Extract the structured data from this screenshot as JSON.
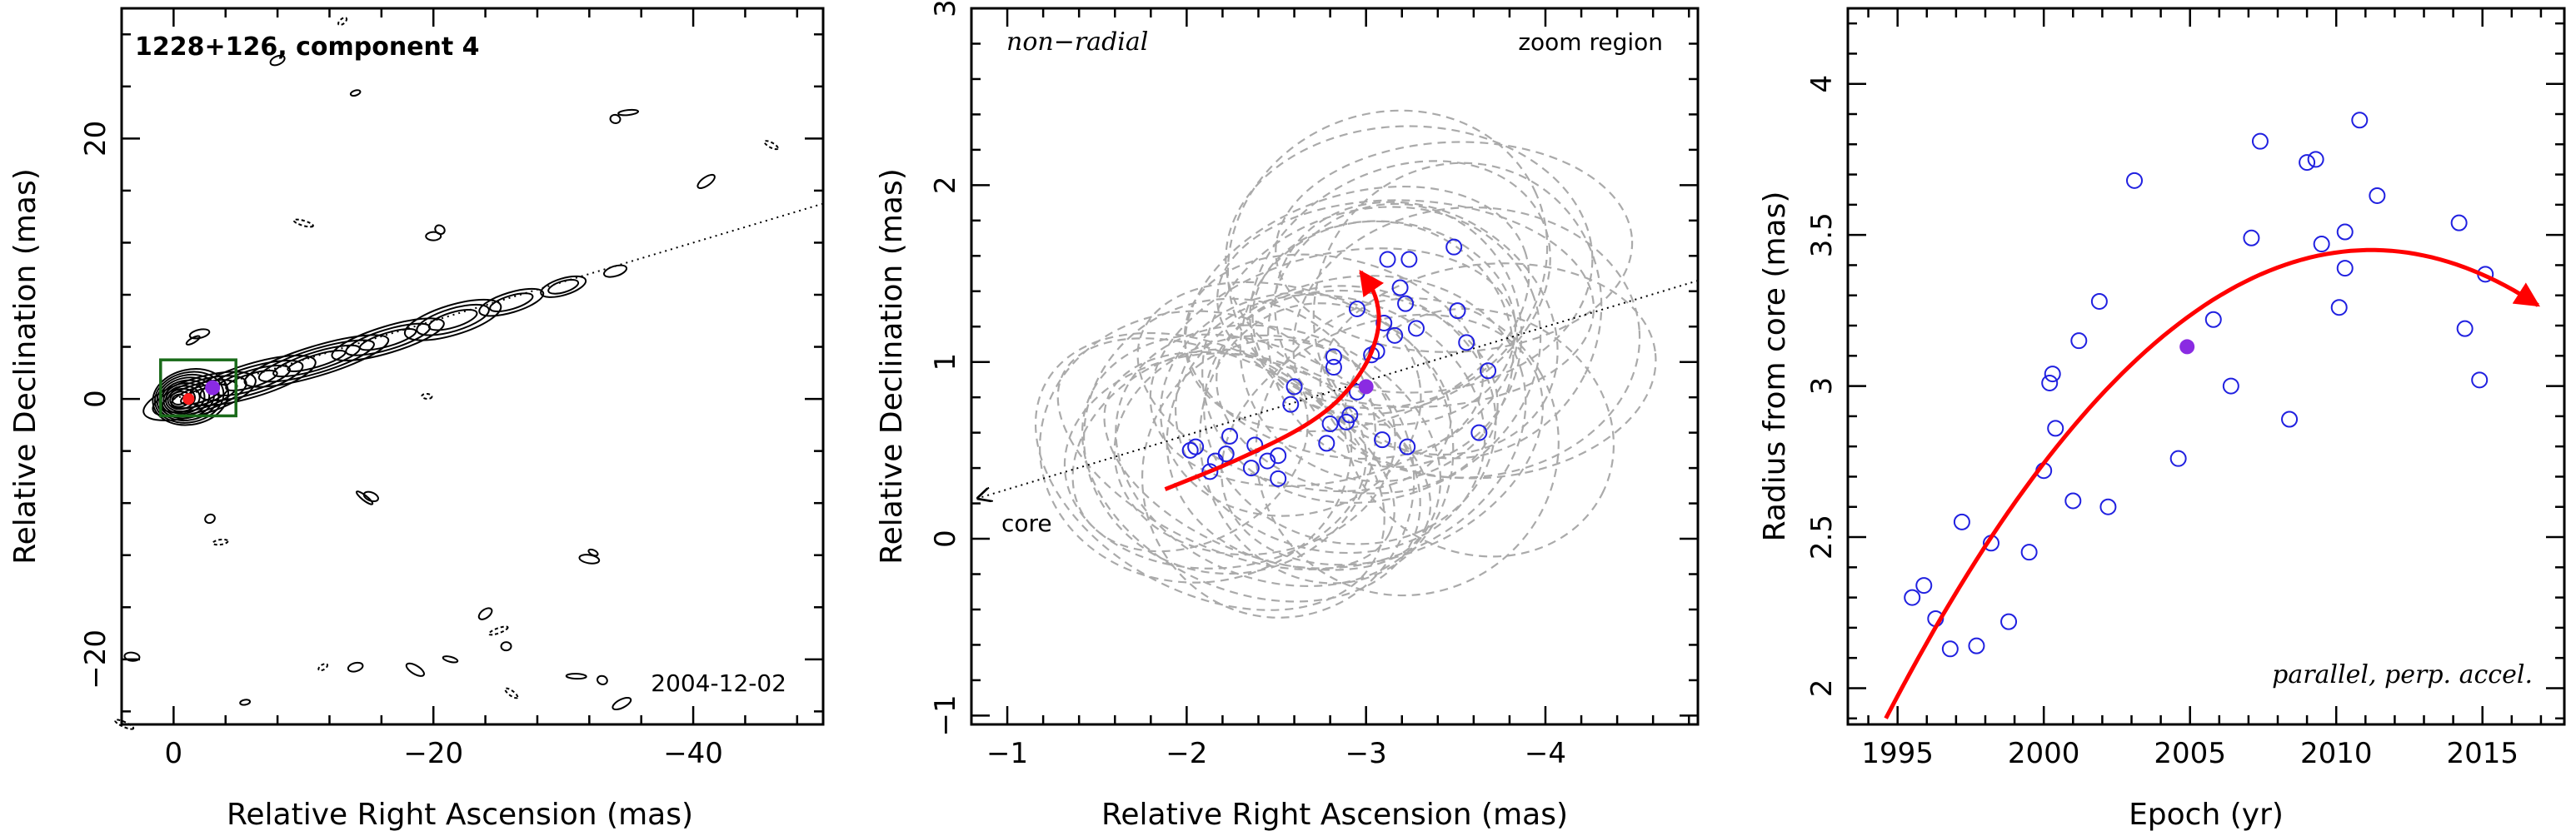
{
  "chart_data": [
    {
      "type": "contour",
      "title": "1228+126, component 4",
      "date_label": "2004-12-02",
      "xlabel": "Relative Right Ascension (mas)",
      "ylabel": "Relative Declination (mas)",
      "xlim": [
        4,
        -50
      ],
      "ylim": [
        -25,
        30
      ],
      "xticks": [
        0,
        -20,
        -40
      ],
      "yticks": [
        -20,
        0,
        20
      ],
      "jet_axis": [
        [
          0,
          0
        ],
        [
          -50,
          15
        ]
      ],
      "zoom_box": {
        "x": [
          1,
          -4.8
        ],
        "y": [
          -1.3,
          3
        ]
      },
      "component": {
        "x": -3.0,
        "y": 0.86
      },
      "core": {
        "x": 0,
        "y": 0
      }
    },
    {
      "type": "scatter",
      "annotation_left": "non−radial",
      "annotation_right": "zoom region",
      "core_label": "core",
      "xlabel": "Relative Right Ascension (mas)",
      "ylabel": "Relative Declination (mas)",
      "xlim": [
        -0.8,
        -4.85
      ],
      "ylim": [
        -1.05,
        3.0
      ],
      "xticks": [
        -1,
        -2,
        -3,
        -4
      ],
      "yticks": [
        -1,
        0,
        1,
        2,
        3
      ],
      "jet_axis": [
        [
          -0.8,
          0.22
        ],
        [
          -4.85,
          1.46
        ]
      ],
      "points": [
        [
          -2.02,
          0.5
        ],
        [
          -2.05,
          0.52
        ],
        [
          -2.13,
          0.38
        ],
        [
          -2.16,
          0.44
        ],
        [
          -2.22,
          0.48
        ],
        [
          -2.24,
          0.58
        ],
        [
          -2.36,
          0.4
        ],
        [
          -2.38,
          0.53
        ],
        [
          -2.45,
          0.44
        ],
        [
          -2.51,
          0.34
        ],
        [
          -2.51,
          0.47
        ],
        [
          -2.58,
          0.76
        ],
        [
          -2.6,
          0.86
        ],
        [
          -2.78,
          0.54
        ],
        [
          -2.8,
          0.65
        ],
        [
          -2.82,
          0.97
        ],
        [
          -2.82,
          1.03
        ],
        [
          -2.89,
          0.66
        ],
        [
          -2.91,
          0.7
        ],
        [
          -2.95,
          1.3
        ],
        [
          -2.95,
          0.83
        ],
        [
          -3.03,
          1.04
        ],
        [
          -3.06,
          1.06
        ],
        [
          -3.09,
          0.56
        ],
        [
          -3.1,
          1.22
        ],
        [
          -3.12,
          1.58
        ],
        [
          -3.16,
          1.15
        ],
        [
          -3.19,
          1.42
        ],
        [
          -3.22,
          1.33
        ],
        [
          -3.23,
          0.52
        ],
        [
          -3.24,
          1.58
        ],
        [
          -3.28,
          1.19
        ],
        [
          -3.49,
          1.65
        ],
        [
          -3.51,
          1.29
        ],
        [
          -3.56,
          1.11
        ],
        [
          -3.63,
          0.6
        ],
        [
          -3.68,
          0.95
        ]
      ],
      "mean_point": {
        "x": -3.0,
        "y": 0.86
      },
      "fit_path": [
        [
          -1.88,
          0.28
        ],
        [
          -2.3,
          0.45
        ],
        [
          -2.75,
          0.68
        ],
        [
          -2.98,
          0.93
        ],
        [
          -3.08,
          1.18
        ],
        [
          -3.06,
          1.38
        ],
        [
          -2.97,
          1.51
        ]
      ]
    },
    {
      "type": "scatter",
      "annotation": "parallel, perp. accel.",
      "xlabel": "Epoch (yr)",
      "ylabel": "Radius from core (mas)",
      "xlim": [
        1993.3,
        2017.8
      ],
      "ylim": [
        1.88,
        4.25
      ],
      "xticks": [
        1995,
        2000,
        2005,
        2010,
        2015
      ],
      "yticks": [
        2,
        2.5,
        3,
        3.5,
        4
      ],
      "points": [
        [
          1995.5,
          2.3
        ],
        [
          1995.9,
          2.34
        ],
        [
          1996.3,
          2.23
        ],
        [
          1996.8,
          2.13
        ],
        [
          1997.2,
          2.55
        ],
        [
          1997.7,
          2.14
        ],
        [
          1998.2,
          2.48
        ],
        [
          1998.8,
          2.22
        ],
        [
          1999.5,
          2.45
        ],
        [
          2000.0,
          2.72
        ],
        [
          2000.2,
          3.01
        ],
        [
          2000.3,
          3.04
        ],
        [
          2000.4,
          2.86
        ],
        [
          2001.0,
          2.62
        ],
        [
          2001.2,
          3.15
        ],
        [
          2001.9,
          3.28
        ],
        [
          2002.2,
          2.6
        ],
        [
          2003.1,
          3.68
        ],
        [
          2004.6,
          2.76
        ],
        [
          2005.8,
          3.22
        ],
        [
          2006.4,
          3.0
        ],
        [
          2007.1,
          3.49
        ],
        [
          2007.4,
          3.81
        ],
        [
          2008.4,
          2.89
        ],
        [
          2009.0,
          3.74
        ],
        [
          2009.3,
          3.75
        ],
        [
          2009.5,
          3.47
        ],
        [
          2010.1,
          3.26
        ],
        [
          2010.3,
          3.39
        ],
        [
          2010.3,
          3.51
        ],
        [
          2010.8,
          3.88
        ],
        [
          2011.4,
          3.63
        ],
        [
          2014.2,
          3.54
        ],
        [
          2014.4,
          3.19
        ],
        [
          2014.9,
          3.02
        ],
        [
          2015.1,
          3.37
        ]
      ],
      "mean_point": {
        "x": 2004.9,
        "y": 3.13
      },
      "fit_curve": {
        "x_start": 1994.6,
        "x_end": 2016.9,
        "peak_x": 2011.2,
        "peak_y": 3.45,
        "start_y": 1.9
      }
    }
  ]
}
